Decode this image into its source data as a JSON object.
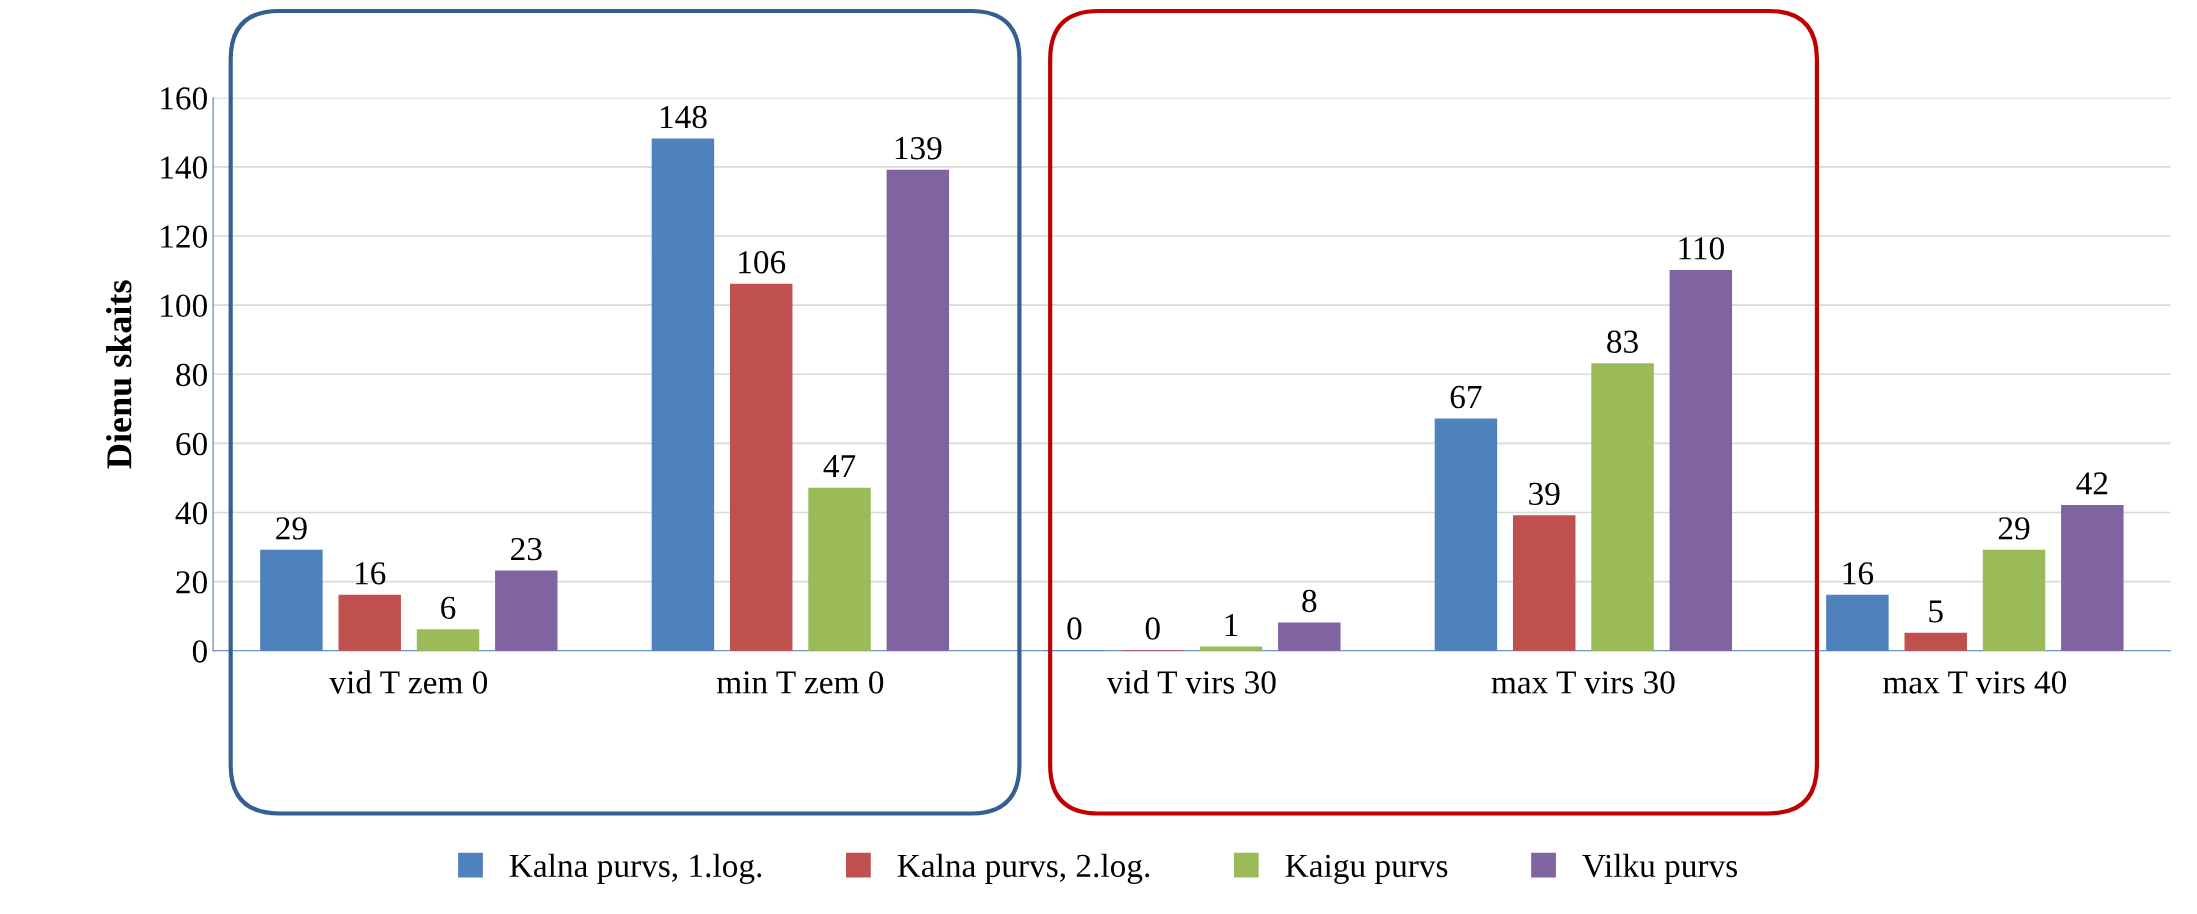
{
  "chart_data": {
    "type": "bar",
    "ylabel": "Dienu skaits",
    "categories": [
      "vid T zem 0",
      "min T zem 0",
      "vid T virs 30",
      "max T virs 30",
      "max T virs 40"
    ],
    "series": [
      {
        "name": "Kalna purvs, 1.log.",
        "color": "#4f81bd",
        "values": [
          29,
          148,
          0,
          67,
          16
        ]
      },
      {
        "name": "Kalna purvs, 2.log.",
        "color": "#c0504d",
        "values": [
          16,
          106,
          0,
          39,
          5
        ]
      },
      {
        "name": "Kaigu purvs",
        "color": "#9bbb59",
        "values": [
          6,
          47,
          1,
          83,
          29
        ]
      },
      {
        "name": "Vilku purvs",
        "color": "#8064a2",
        "values": [
          23,
          139,
          8,
          110,
          42
        ]
      }
    ],
    "ylim": [
      0,
      160
    ],
    "yticks": [
      0,
      20,
      40,
      60,
      80,
      100,
      120,
      140,
      160
    ],
    "grid": "y",
    "legend": "bottom",
    "data_labels": true
  }
}
